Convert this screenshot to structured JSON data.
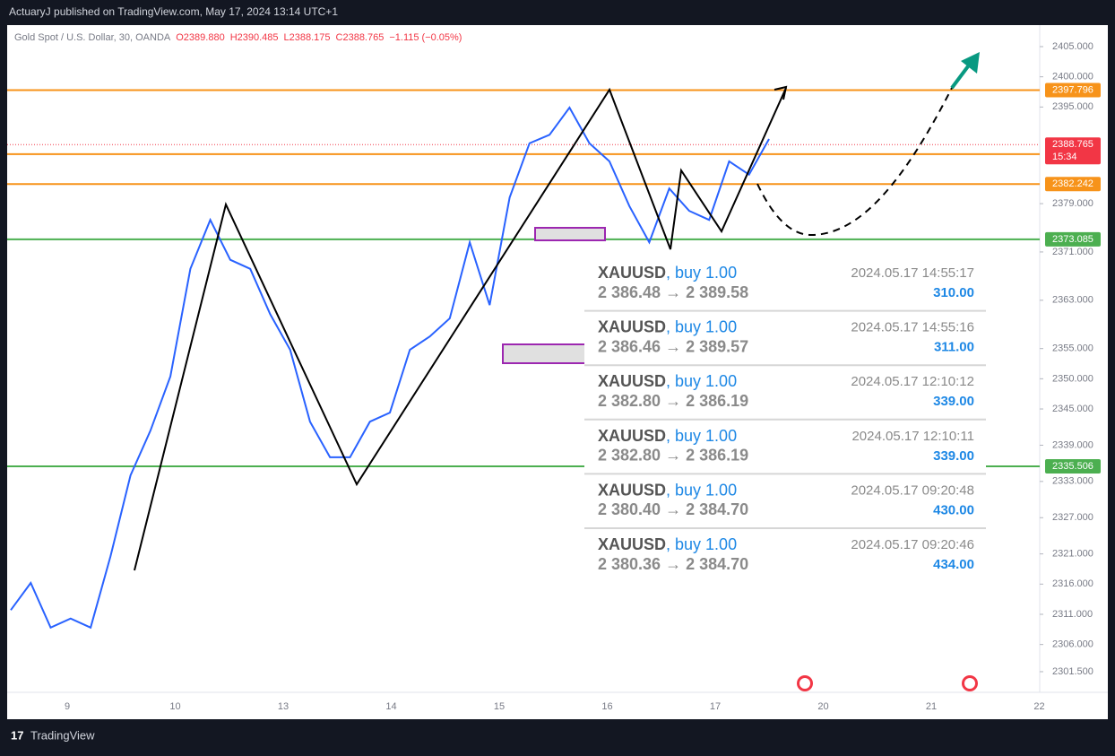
{
  "top_bar": "ActuaryJ published on TradingView.com, May 17, 2024 13:14 UTC+1",
  "footer": "TradingView",
  "chart_data": {
    "type": "line",
    "title": "Gold Spot / U.S. Dollar, 30, OANDA",
    "quote": [
      "O2389.880",
      "H2390.485",
      "L2388.175",
      "C2388.765",
      "−1.115 (−0.05%)"
    ],
    "x_labels": [
      "9",
      "10",
      "13",
      "14",
      "15",
      "16",
      "17",
      "20",
      "21",
      "22"
    ],
    "color": "#2962ff",
    "values": [
      2311.7,
      2316.2,
      2308.8,
      2310.3,
      2308.8,
      2320.6,
      2334,
      2341.4,
      2350.4,
      2368.2,
      2376.3,
      2369.7,
      2368.2,
      2360.7,
      2354.8,
      2342.9,
      2337,
      2337,
      2342.9,
      2344.4,
      2354.8,
      2357,
      2360,
      2372.6,
      2362.2,
      2380,
      2389,
      2390.4,
      2394.9,
      2389,
      2386,
      2378.6,
      2372.6,
      2381.5,
      2377.8,
      2376.3,
      2386,
      2383.8,
      2389.7
    ],
    "ylim": [
      2298.08,
      2408.56
    ],
    "yticks": [
      {
        "value": 2405,
        "label": "2405.000"
      },
      {
        "value": 2400,
        "label": "2400.000"
      },
      {
        "value": 2395,
        "label": "2395.000"
      },
      {
        "value": 2379,
        "label": "2379.000"
      },
      {
        "value": 2371,
        "label": "2371.000"
      },
      {
        "value": 2363,
        "label": "2363.000"
      },
      {
        "value": 2355,
        "label": "2355.000"
      },
      {
        "value": 2350,
        "label": "2350.000"
      },
      {
        "value": 2345,
        "label": "2345.000"
      },
      {
        "value": 2339,
        "label": "2339.000"
      },
      {
        "value": 2333,
        "label": "2333.000"
      },
      {
        "value": 2327,
        "label": "2327.000"
      },
      {
        "value": 2321,
        "label": "2321.000"
      },
      {
        "value": 2316,
        "label": "2316.000"
      },
      {
        "value": 2311,
        "label": "2311.000"
      },
      {
        "value": 2306,
        "label": "2306.000"
      },
      {
        "value": 2301.5,
        "label": "2301.500"
      }
    ],
    "levels": [
      {
        "value": 2397.796,
        "color": "#f7931a"
      },
      {
        "value": 2387.199,
        "color": "#f7931a"
      },
      {
        "value": 2382.242,
        "color": "#f7931a"
      },
      {
        "value": 2373.085,
        "color": "#4caf50"
      },
      {
        "value": 2335.506,
        "color": "#4caf50"
      }
    ],
    "current": {
      "value": 2388.765,
      "countdown": "15:34",
      "color": "#f23645"
    }
  },
  "trades": [
    {
      "symbol": "XAUUSD",
      "side": ", buy 1.00",
      "time": "2024.05.17 14:55:17",
      "prices": "2 386.48 → 2 389.58",
      "profit": "310.00"
    },
    {
      "symbol": "XAUUSD",
      "side": ", buy 1.00",
      "time": "2024.05.17 14:55:16",
      "prices": "2 386.46 → 2 389.57",
      "profit": "311.00"
    },
    {
      "symbol": "XAUUSD",
      "side": ", buy 1.00",
      "time": "2024.05.17 12:10:12",
      "prices": "2 382.80 → 2 386.19",
      "profit": "339.00"
    },
    {
      "symbol": "XAUUSD",
      "side": ", buy 1.00",
      "time": "2024.05.17 12:10:11",
      "prices": "2 382.80 → 2 386.19",
      "profit": "339.00"
    },
    {
      "symbol": "XAUUSD",
      "side": ", buy 1.00",
      "time": "2024.05.17 09:20:48",
      "prices": "2 380.40 → 2 384.70",
      "profit": "430.00"
    },
    {
      "symbol": "XAUUSD",
      "side": ", buy 1.00",
      "time": "2024.05.17 09:20:46",
      "prices": "2 380.36 → 2 384.70",
      "profit": "434.00"
    }
  ]
}
